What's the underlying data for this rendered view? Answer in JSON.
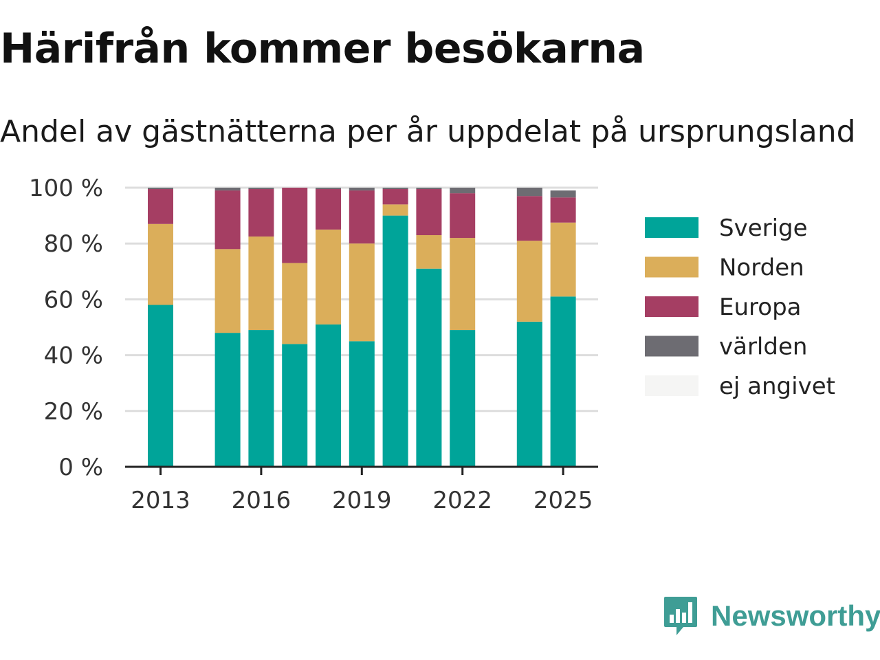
{
  "title": "Härifrån kommer besökarna",
  "subtitle": "Andel av gästnätterna per år uppdelat på ursprungsland",
  "brand": {
    "name": "Newsworthy",
    "icon": "newsworthy-logo-icon",
    "color": "#3f9d95"
  },
  "chart_data": {
    "type": "bar",
    "stacked": true,
    "x": [
      2013,
      2014,
      2015,
      2016,
      2017,
      2018,
      2019,
      2020,
      2021,
      2022,
      2023,
      2024,
      2025
    ],
    "x_ticks": [
      "2013",
      "2016",
      "2019",
      "2022",
      "2025"
    ],
    "y_ticks": [
      "0 %",
      "20 %",
      "40 %",
      "60 %",
      "80 %",
      "100 %"
    ],
    "ylim": [
      0,
      100
    ],
    "grid": true,
    "legend_position": "right",
    "series": [
      {
        "name": "Sverige",
        "color": "#00a499",
        "values": [
          58,
          null,
          48,
          49,
          44,
          51,
          45,
          90,
          71,
          49,
          null,
          52,
          61
        ]
      },
      {
        "name": "Norden",
        "color": "#dbae5a",
        "values": [
          29,
          null,
          30,
          33.5,
          29,
          34,
          35,
          4,
          12,
          33,
          null,
          29,
          26.5
        ]
      },
      {
        "name": "Europa",
        "color": "#a53e63",
        "values": [
          12.5,
          null,
          21,
          17,
          27,
          14.5,
          19,
          5.5,
          16.5,
          16,
          null,
          16,
          9
        ]
      },
      {
        "name": "världen",
        "color": "#6d6c72",
        "values": [
          0.5,
          null,
          1,
          0.5,
          0,
          0.5,
          1,
          0.5,
          0.5,
          2,
          null,
          3,
          2.5
        ]
      },
      {
        "name": "ej angivet",
        "color": "#f5f5f4",
        "values": [
          0,
          null,
          0,
          0,
          0,
          0,
          0,
          0,
          0,
          0,
          null,
          0,
          0
        ]
      }
    ]
  }
}
